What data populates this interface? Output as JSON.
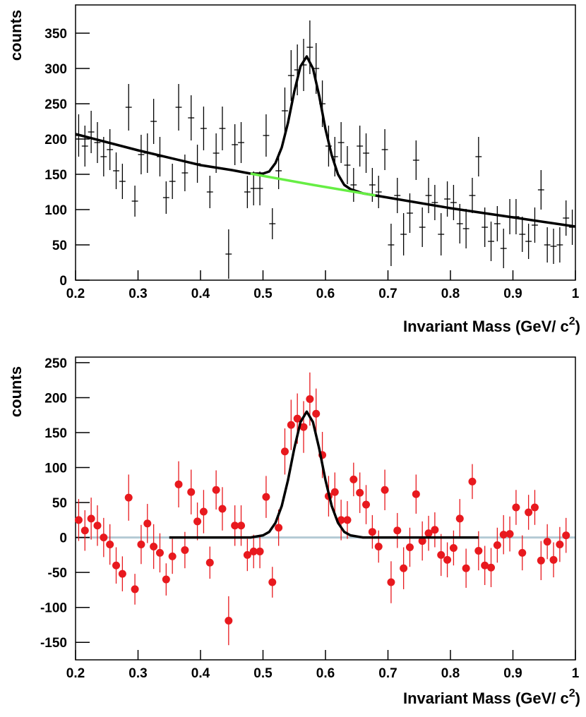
{
  "chart_data": [
    {
      "type": "errorbar",
      "ylabel": "counts",
      "xlabel": [
        "Invariant Mass (GeV/ c",
        "2",
        ")"
      ],
      "marker": "none",
      "color": "#000000",
      "xerr": 0.005,
      "xlim": [
        0.2,
        1
      ],
      "xticks": [
        {
          "value": 0.2,
          "label": "0.2"
        },
        {
          "value": 0.3,
          "label": "0.3"
        },
        {
          "value": 0.4,
          "label": "0.4"
        },
        {
          "value": 0.5,
          "label": "0.5"
        },
        {
          "value": 0.6,
          "label": "0.6"
        },
        {
          "value": 0.7,
          "label": "0.7"
        },
        {
          "value": 0.8,
          "label": "0.8"
        },
        {
          "value": 0.9,
          "label": "0.9"
        },
        1
      ],
      "ylim": [
        0,
        390
      ],
      "yticks": [
        0,
        50,
        100,
        150,
        200,
        250,
        300,
        350
      ],
      "x": [
        0.205,
        0.215,
        0.225,
        0.235,
        0.245,
        0.255,
        0.265,
        0.275,
        0.285,
        0.295,
        0.305,
        0.315,
        0.325,
        0.335,
        0.345,
        0.355,
        0.365,
        0.375,
        0.385,
        0.395,
        0.405,
        0.415,
        0.425,
        0.435,
        0.445,
        0.455,
        0.465,
        0.475,
        0.485,
        0.495,
        0.505,
        0.515,
        0.525,
        0.535,
        0.545,
        0.555,
        0.565,
        0.575,
        0.585,
        0.595,
        0.605,
        0.615,
        0.625,
        0.635,
        0.645,
        0.655,
        0.665,
        0.675,
        0.685,
        0.695,
        0.705,
        0.715,
        0.725,
        0.735,
        0.745,
        0.755,
        0.765,
        0.775,
        0.785,
        0.795,
        0.805,
        0.815,
        0.825,
        0.835,
        0.845,
        0.855,
        0.865,
        0.875,
        0.885,
        0.895,
        0.905,
        0.915,
        0.925,
        0.935,
        0.945,
        0.955,
        0.965,
        0.975,
        0.985,
        0.995
      ],
      "values": [
        205,
        190,
        210,
        195,
        175,
        185,
        155,
        140,
        245,
        112,
        178,
        180,
        225,
        175,
        117,
        140,
        245,
        152,
        230,
        165,
        215,
        125,
        180,
        215,
        37,
        192,
        195,
        125,
        130,
        130,
        205,
        80,
        155,
        240,
        290,
        298,
        305,
        330,
        300,
        250,
        190,
        175,
        195,
        163,
        135,
        190,
        180,
        135,
        125,
        185,
        50,
        120,
        65,
        95,
        170,
        75,
        120,
        110,
        65,
        115,
        110,
        80,
        73,
        120,
        175,
        75,
        55,
        80,
        45,
        90,
        90,
        65,
        55,
        78,
        128,
        50,
        48,
        50,
        88,
        75
      ],
      "errors": [
        30,
        29,
        30,
        29,
        28,
        29,
        26,
        25,
        33,
        22,
        28,
        28,
        32,
        28,
        23,
        25,
        33,
        26,
        32,
        27,
        31,
        23,
        28,
        31,
        35,
        29,
        29,
        23,
        24,
        24,
        30,
        22,
        26,
        33,
        36,
        36,
        37,
        38,
        36,
        33,
        29,
        28,
        29,
        27,
        24,
        29,
        28,
        24,
        23,
        29,
        30,
        25,
        30,
        28,
        28,
        28,
        25,
        25,
        30,
        25,
        25,
        28,
        28,
        25,
        28,
        28,
        28,
        25,
        28,
        25,
        25,
        25,
        25,
        25,
        28,
        25,
        25,
        25,
        25,
        25
      ],
      "curves": [
        {
          "color": "#000000",
          "x": [
            0.2,
            0.3,
            0.4,
            0.45,
            0.48,
            0.5,
            0.51,
            0.52,
            0.53,
            0.54,
            0.55,
            0.56,
            0.57,
            0.58,
            0.59,
            0.6,
            0.61,
            0.62,
            0.63,
            0.64,
            0.66,
            0.7,
            0.8,
            0.9,
            1
          ],
          "values": [
            207,
            184,
            163,
            156,
            151,
            151,
            154,
            166,
            188,
            223,
            267,
            303,
            317,
            300,
            261,
            214,
            177,
            150,
            135,
            129,
            123,
            117,
            102,
            89,
            76
          ]
        },
        {
          "color": "#66ee44",
          "x": [
            0.48,
            0.58,
            0.68
          ],
          "values": [
            151,
            135,
            120
          ]
        }
      ]
    },
    {
      "type": "errorbar",
      "ylabel": "counts",
      "xlabel": [
        "Invariant Mass (GeV/ c",
        "2",
        ")"
      ],
      "marker": "circle",
      "color": "#e8191e",
      "reference_line": 0,
      "reference_color": "#b4cad4",
      "xlim": [
        0.2,
        1
      ],
      "xticks": [
        {
          "value": 0.2,
          "label": "0.2"
        },
        {
          "value": 0.3,
          "label": "0.3"
        },
        {
          "value": 0.4,
          "label": "0.4"
        },
        {
          "value": 0.5,
          "label": "0.5"
        },
        {
          "value": 0.6,
          "label": "0.6"
        },
        {
          "value": 0.7,
          "label": "0.7"
        },
        {
          "value": 0.8,
          "label": "0.8"
        },
        {
          "value": 0.9,
          "label": "0.9"
        },
        1
      ],
      "ylim": [
        -175,
        258
      ],
      "yticks": [
        -150,
        -100,
        -50,
        0,
        50,
        100,
        150,
        200,
        250
      ],
      "x": [
        0.205,
        0.215,
        0.225,
        0.235,
        0.245,
        0.255,
        0.265,
        0.275,
        0.285,
        0.295,
        0.305,
        0.315,
        0.325,
        0.335,
        0.345,
        0.355,
        0.365,
        0.375,
        0.385,
        0.395,
        0.405,
        0.415,
        0.425,
        0.435,
        0.445,
        0.455,
        0.465,
        0.475,
        0.485,
        0.495,
        0.505,
        0.515,
        0.525,
        0.535,
        0.545,
        0.555,
        0.565,
        0.575,
        0.585,
        0.595,
        0.605,
        0.615,
        0.625,
        0.635,
        0.645,
        0.655,
        0.665,
        0.675,
        0.685,
        0.695,
        0.705,
        0.715,
        0.725,
        0.735,
        0.745,
        0.755,
        0.765,
        0.775,
        0.785,
        0.795,
        0.805,
        0.815,
        0.825,
        0.835,
        0.845,
        0.855,
        0.865,
        0.875,
        0.885,
        0.895,
        0.905,
        0.915,
        0.925,
        0.935,
        0.945,
        0.955,
        0.965,
        0.975,
        0.985
      ],
      "values": [
        25,
        10,
        27,
        17,
        0,
        -10,
        -40,
        -52,
        57,
        -74,
        -10,
        20,
        -13,
        -22,
        -60,
        -27,
        76,
        -18,
        65,
        23,
        37,
        -36,
        68,
        41,
        -119,
        17,
        17,
        -25,
        -20,
        -20,
        58,
        -64,
        14,
        123,
        161,
        170,
        158,
        198,
        177,
        118,
        59,
        65,
        25,
        25,
        83,
        64,
        47,
        8,
        -13,
        68,
        -64,
        10,
        -44,
        -14,
        62,
        -5,
        6,
        11,
        -25,
        -32,
        -15,
        27,
        -44,
        80,
        -19,
        -40,
        -43,
        -11,
        4,
        5,
        43,
        -22,
        36,
        43,
        -33,
        -6,
        -32,
        -10,
        3
      ],
      "errors": [
        30,
        29,
        30,
        29,
        28,
        29,
        26,
        25,
        33,
        22,
        28,
        28,
        32,
        28,
        23,
        25,
        33,
        26,
        32,
        27,
        31,
        23,
        28,
        31,
        35,
        29,
        29,
        23,
        24,
        24,
        30,
        22,
        26,
        33,
        36,
        36,
        37,
        38,
        36,
        33,
        29,
        28,
        29,
        27,
        24,
        29,
        28,
        24,
        23,
        29,
        30,
        25,
        30,
        28,
        28,
        28,
        25,
        25,
        30,
        25,
        25,
        28,
        28,
        25,
        28,
        28,
        28,
        25,
        28,
        25,
        25,
        25,
        25,
        25,
        28,
        25,
        25,
        25,
        25
      ],
      "curves": [
        {
          "color": "#000000",
          "x": [
            0.35,
            0.48,
            0.5,
            0.51,
            0.52,
            0.53,
            0.54,
            0.55,
            0.56,
            0.57,
            0.58,
            0.59,
            0.6,
            0.61,
            0.62,
            0.63,
            0.64,
            0.66,
            0.845
          ],
          "values": [
            0,
            0,
            3,
            8,
            21,
            45,
            82,
            127,
            165,
            180,
            165,
            127,
            82,
            45,
            21,
            8,
            3,
            0,
            0
          ]
        }
      ]
    }
  ]
}
